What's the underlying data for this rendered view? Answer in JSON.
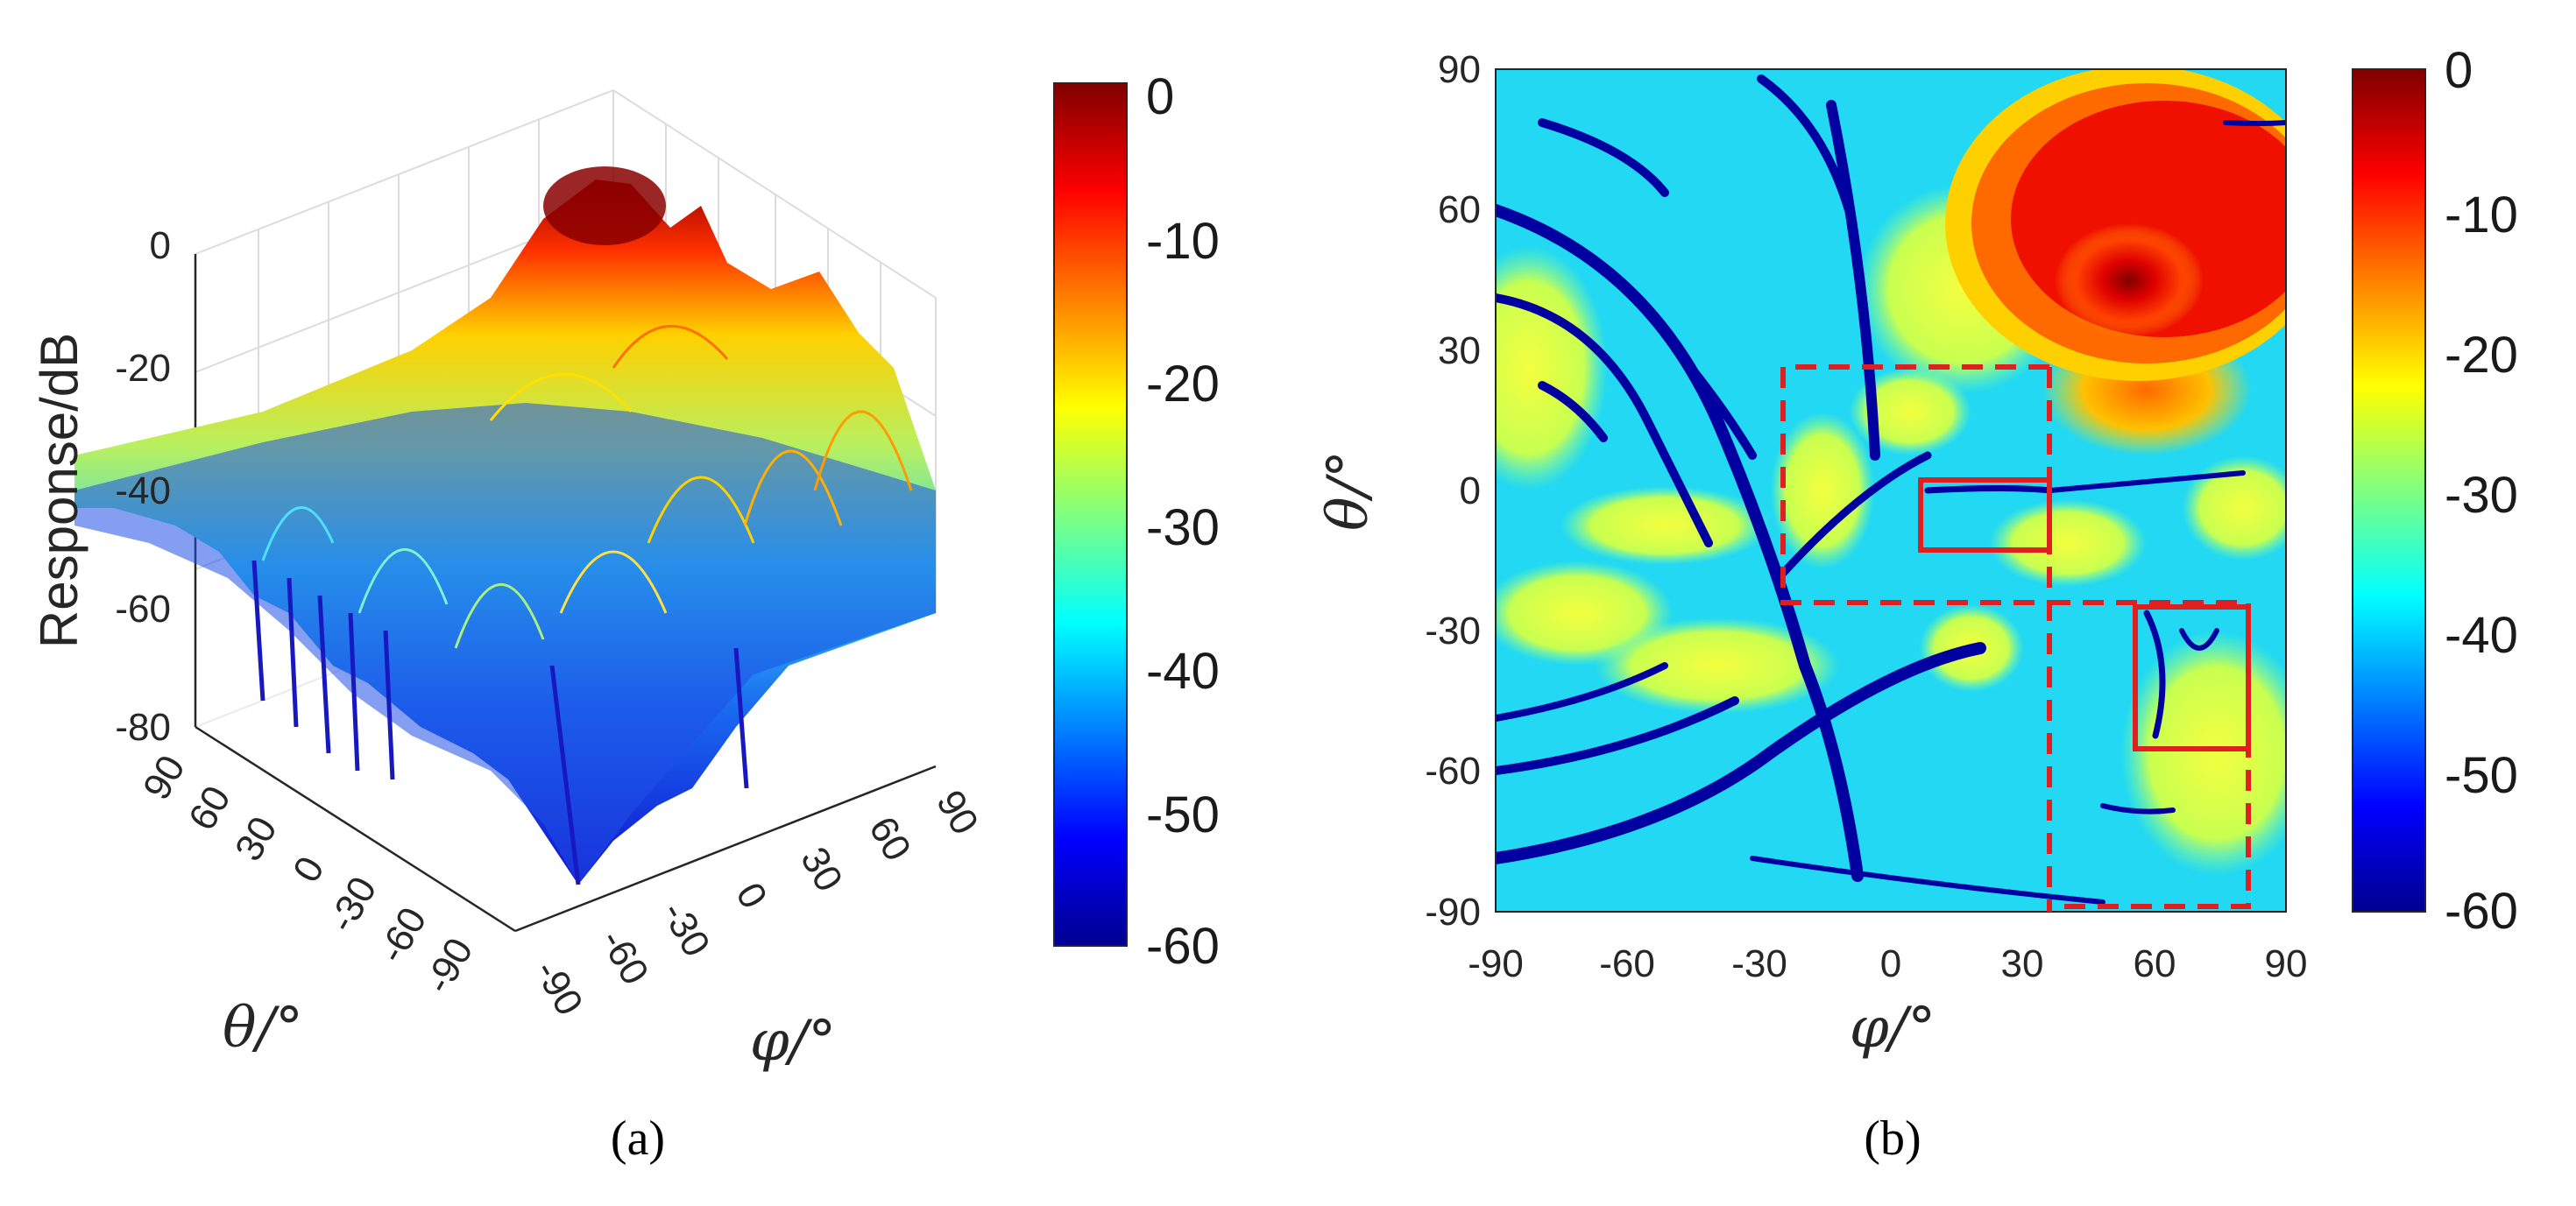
{
  "chart_data": [
    {
      "type": "surface",
      "panel_label": "(a)",
      "zlabel": "Response/dB",
      "xlabel": "φ/°",
      "ylabel": "θ/°",
      "zlim": [
        -80,
        0
      ],
      "z_ticks": [
        "0",
        "-20",
        "-40",
        "-60",
        "-80"
      ],
      "phi_ticks": [
        "-90",
        "-60",
        "-30",
        "0",
        "30",
        "60",
        "90"
      ],
      "theta_ticks": [
        "90",
        "60",
        "30",
        "0",
        "-30",
        "-60",
        "-90"
      ],
      "colormap": "jet",
      "colorbar_range": [
        -60,
        0
      ],
      "colorbar_ticks": [
        "0",
        "-10",
        "-20",
        "-30",
        "-40",
        "-50",
        "-60"
      ],
      "grid": true
    },
    {
      "type": "heatmap",
      "panel_label": "(b)",
      "xlabel": "φ/°",
      "ylabel": "θ/°",
      "xlim": [
        -90,
        90
      ],
      "ylim": [
        -90,
        90
      ],
      "x_ticks": [
        "-90",
        "-60",
        "-30",
        "0",
        "30",
        "60",
        "90"
      ],
      "y_ticks": [
        "90",
        "60",
        "30",
        "0",
        "-30",
        "-60",
        "-90"
      ],
      "colormap": "jet",
      "colorbar_range": [
        -60,
        0
      ],
      "colorbar_ticks": [
        "0",
        "-10",
        "-20",
        "-30",
        "-40",
        "-50",
        "-60"
      ],
      "peak": {
        "phi": 45,
        "theta": 40,
        "value_db": 0
      },
      "annotations": [
        {
          "style": "dashed",
          "color": "#e02020",
          "phi_range": [
            -27,
            34
          ],
          "theta_range": [
            -24,
            26
          ]
        },
        {
          "style": "dashed",
          "color": "#e02020",
          "phi_range": [
            34,
            90
          ],
          "theta_range": [
            -90,
            -24
          ]
        },
        {
          "style": "solid",
          "color": "#e02020",
          "phi_range": [
            6,
            34
          ],
          "theta_range": [
            -12,
            2
          ]
        },
        {
          "style": "solid",
          "color": "#e02020",
          "phi_range": [
            55,
            79
          ],
          "theta_range": [
            -55,
            -25
          ]
        }
      ]
    }
  ]
}
